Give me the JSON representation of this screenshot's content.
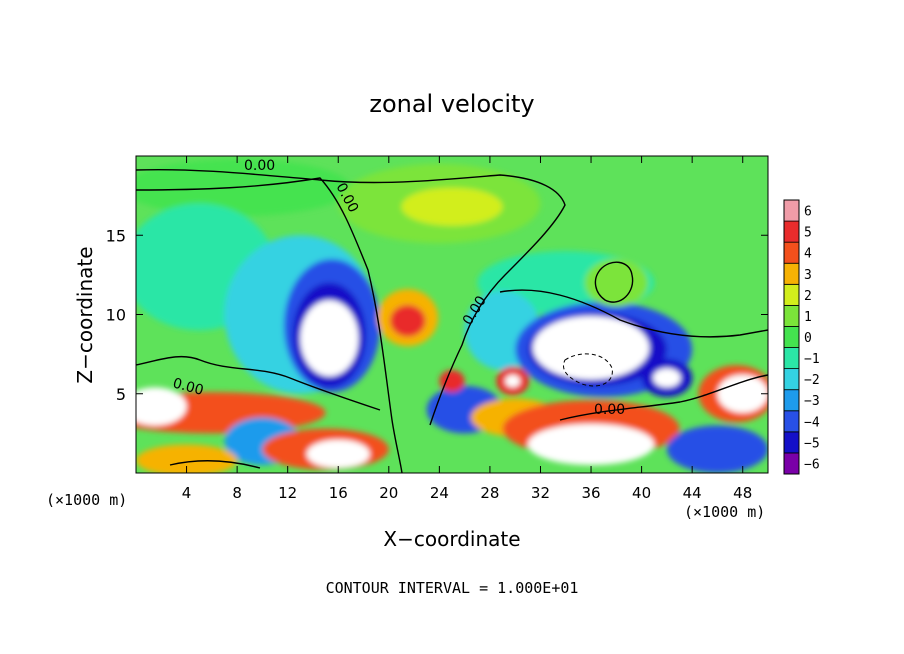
{
  "chart_data": {
    "type": "heatmap",
    "title": "zonal velocity",
    "xlabel": "X−coordinate",
    "ylabel": "Z−coordinate",
    "x_units_left": "(×1000 m)",
    "x_units_right": "(×1000 m)",
    "xlim": [
      0,
      50
    ],
    "ylim": [
      0,
      20
    ],
    "x_ticks": [
      4,
      8,
      12,
      16,
      20,
      24,
      28,
      32,
      36,
      40,
      44,
      48
    ],
    "x_tick_labels": [
      "4",
      "8",
      "12",
      "16",
      "20",
      "24",
      "28",
      "32",
      "36",
      "40",
      "44",
      "48"
    ],
    "y_ticks": [
      5,
      10,
      15
    ],
    "y_tick_labels": [
      "5",
      "10",
      "15"
    ],
    "colorbar": {
      "levels": [
        -6,
        -5,
        -4,
        -3,
        -2,
        -1,
        0,
        1,
        2,
        3,
        4,
        5,
        6
      ],
      "labels": [
        "−6",
        "−5",
        "−4",
        "−3",
        "−2",
        "−1",
        "0",
        "1",
        "2",
        "3",
        "4",
        "5",
        "6"
      ],
      "colors": [
        "#7a00a8",
        "#1410c8",
        "#2850e6",
        "#1e9bec",
        "#34d2e2",
        "#2be6a6",
        "#44e34f",
        "#7be43a",
        "#d2ee1c",
        "#f6b204",
        "#f3501c",
        "#e92c2c",
        "#f09ca8"
      ]
    },
    "background_color": "#5ee25a",
    "zero_contour_labels": [
      "0.00",
      "0.00",
      "0.00",
      "0.00",
      "0.00"
    ],
    "features": [
      {
        "label": "",
        "kind": "blob",
        "x": 8,
        "z": 18,
        "rx": 9,
        "rz": 1.8,
        "value": 0.5
      },
      {
        "label": "",
        "kind": "blob",
        "x": 24,
        "z": 17,
        "rx": 8,
        "rz": 2.5,
        "value": 1.5
      },
      {
        "label": "",
        "kind": "blob",
        "x": 25,
        "z": 16.8,
        "rx": 4,
        "rz": 1.2,
        "value": 2.0
      },
      {
        "label": "",
        "kind": "blob",
        "x": 5,
        "z": 13,
        "rx": 6,
        "rz": 4,
        "value": -1.4
      },
      {
        "label": "",
        "kind": "blob",
        "x": 13,
        "z": 10,
        "rx": 6,
        "rz": 5,
        "value": -2.0
      },
      {
        "label": "",
        "kind": "blob",
        "x": 15.5,
        "z": 9.3,
        "rx": 3.8,
        "rz": 4.2,
        "value": -3.5
      },
      {
        "label": "",
        "kind": "blob",
        "x": 15.3,
        "z": 8.7,
        "rx": 2.9,
        "rz": 3.3,
        "value": -5.0
      },
      {
        "label": "",
        "kind": "blob",
        "x": 15.3,
        "z": 8.5,
        "rx": 2.3,
        "rz": 2.4,
        "value": -7.5
      },
      {
        "label": "",
        "kind": "blob",
        "x": 21.5,
        "z": 9.8,
        "rx": 2.4,
        "rz": 1.8,
        "value": 3.5
      },
      {
        "label": "",
        "kind": "blob",
        "x": 21.5,
        "z": 9.6,
        "rx": 1.4,
        "rz": 1.0,
        "value": 5.0
      },
      {
        "label": "",
        "kind": "blob",
        "x": 34,
        "z": 12,
        "rx": 7,
        "rz": 2,
        "value": -1.3
      },
      {
        "label": "",
        "kind": "blob",
        "x": 29,
        "z": 9,
        "rx": 3,
        "rz": 2.5,
        "value": -2.0
      },
      {
        "label": "",
        "kind": "blob",
        "x": 37,
        "z": 7.8,
        "rx": 7,
        "rz": 3,
        "value": -3.5
      },
      {
        "label": "",
        "kind": "blob",
        "x": 36.5,
        "z": 7.8,
        "rx": 5.5,
        "rz": 2.3,
        "value": -5.0
      },
      {
        "label": "",
        "kind": "blob",
        "x": 36,
        "z": 7.9,
        "rx": 4.6,
        "rz": 2.0,
        "value": -7.5
      },
      {
        "label": "",
        "kind": "blob",
        "x": 42,
        "z": 6.0,
        "rx": 2.0,
        "rz": 1.2,
        "value": -4.5
      },
      {
        "label": "",
        "kind": "blob",
        "x": 42,
        "z": 6.0,
        "rx": 1.1,
        "rz": 0.6,
        "value": -7.5
      },
      {
        "label": "",
        "kind": "blob",
        "x": 38,
        "z": 12,
        "rx": 2.5,
        "rz": 1.5,
        "value": 1.0
      },
      {
        "label": "",
        "kind": "blob",
        "x": 6,
        "z": 3.8,
        "rx": 9,
        "rz": 1.3,
        "value": 4.0
      },
      {
        "label": "",
        "kind": "blob",
        "x": 1.5,
        "z": 4.2,
        "rx": 2.5,
        "rz": 1.2,
        "value": 7.0
      },
      {
        "label": "",
        "kind": "blob",
        "x": 10,
        "z": 2.0,
        "rx": 3,
        "rz": 1.5,
        "value": -3.0
      },
      {
        "label": "",
        "kind": "blob",
        "x": 15,
        "z": 1.5,
        "rx": 5,
        "rz": 1.3,
        "value": 4.5
      },
      {
        "label": "",
        "kind": "blob",
        "x": 16,
        "z": 1.2,
        "rx": 2.5,
        "rz": 0.9,
        "value": 7.0
      },
      {
        "label": "",
        "kind": "blob",
        "x": 4,
        "z": 0.8,
        "rx": 4,
        "rz": 1.0,
        "value": 3.5
      },
      {
        "label": "",
        "kind": "blob",
        "x": 26,
        "z": 4.0,
        "rx": 3,
        "rz": 1.5,
        "value": -3.5
      },
      {
        "label": "",
        "kind": "blob",
        "x": 25,
        "z": 5.8,
        "rx": 1.0,
        "rz": 0.7,
        "value": 5.0
      },
      {
        "label": "",
        "kind": "blob",
        "x": 29.8,
        "z": 5.8,
        "rx": 1.3,
        "rz": 0.9,
        "value": 5.0
      },
      {
        "label": "",
        "kind": "blob",
        "x": 29.8,
        "z": 5.8,
        "rx": 0.6,
        "rz": 0.4,
        "value": 7.5
      },
      {
        "label": "",
        "kind": "blob",
        "x": 30,
        "z": 3.5,
        "rx": 3.5,
        "rz": 1.2,
        "value": 3.5
      },
      {
        "label": "",
        "kind": "blob",
        "x": 36,
        "z": 2.8,
        "rx": 7,
        "rz": 1.8,
        "value": 4.0
      },
      {
        "label": "",
        "kind": "blob",
        "x": 36,
        "z": 1.8,
        "rx": 5,
        "rz": 1.3,
        "value": 7.0
      },
      {
        "label": "",
        "kind": "blob",
        "x": 47.5,
        "z": 5.0,
        "rx": 3,
        "rz": 1.8,
        "value": 4.5
      },
      {
        "label": "",
        "kind": "blob",
        "x": 48,
        "z": 5.0,
        "rx": 2,
        "rz": 1.2,
        "value": 7.0
      },
      {
        "label": "",
        "kind": "blob",
        "x": 46,
        "z": 1.5,
        "rx": 4,
        "rz": 1.5,
        "value": -4.0
      }
    ]
  },
  "footer": {
    "contour_interval": "CONTOUR INTERVAL = 1.000E+01"
  }
}
